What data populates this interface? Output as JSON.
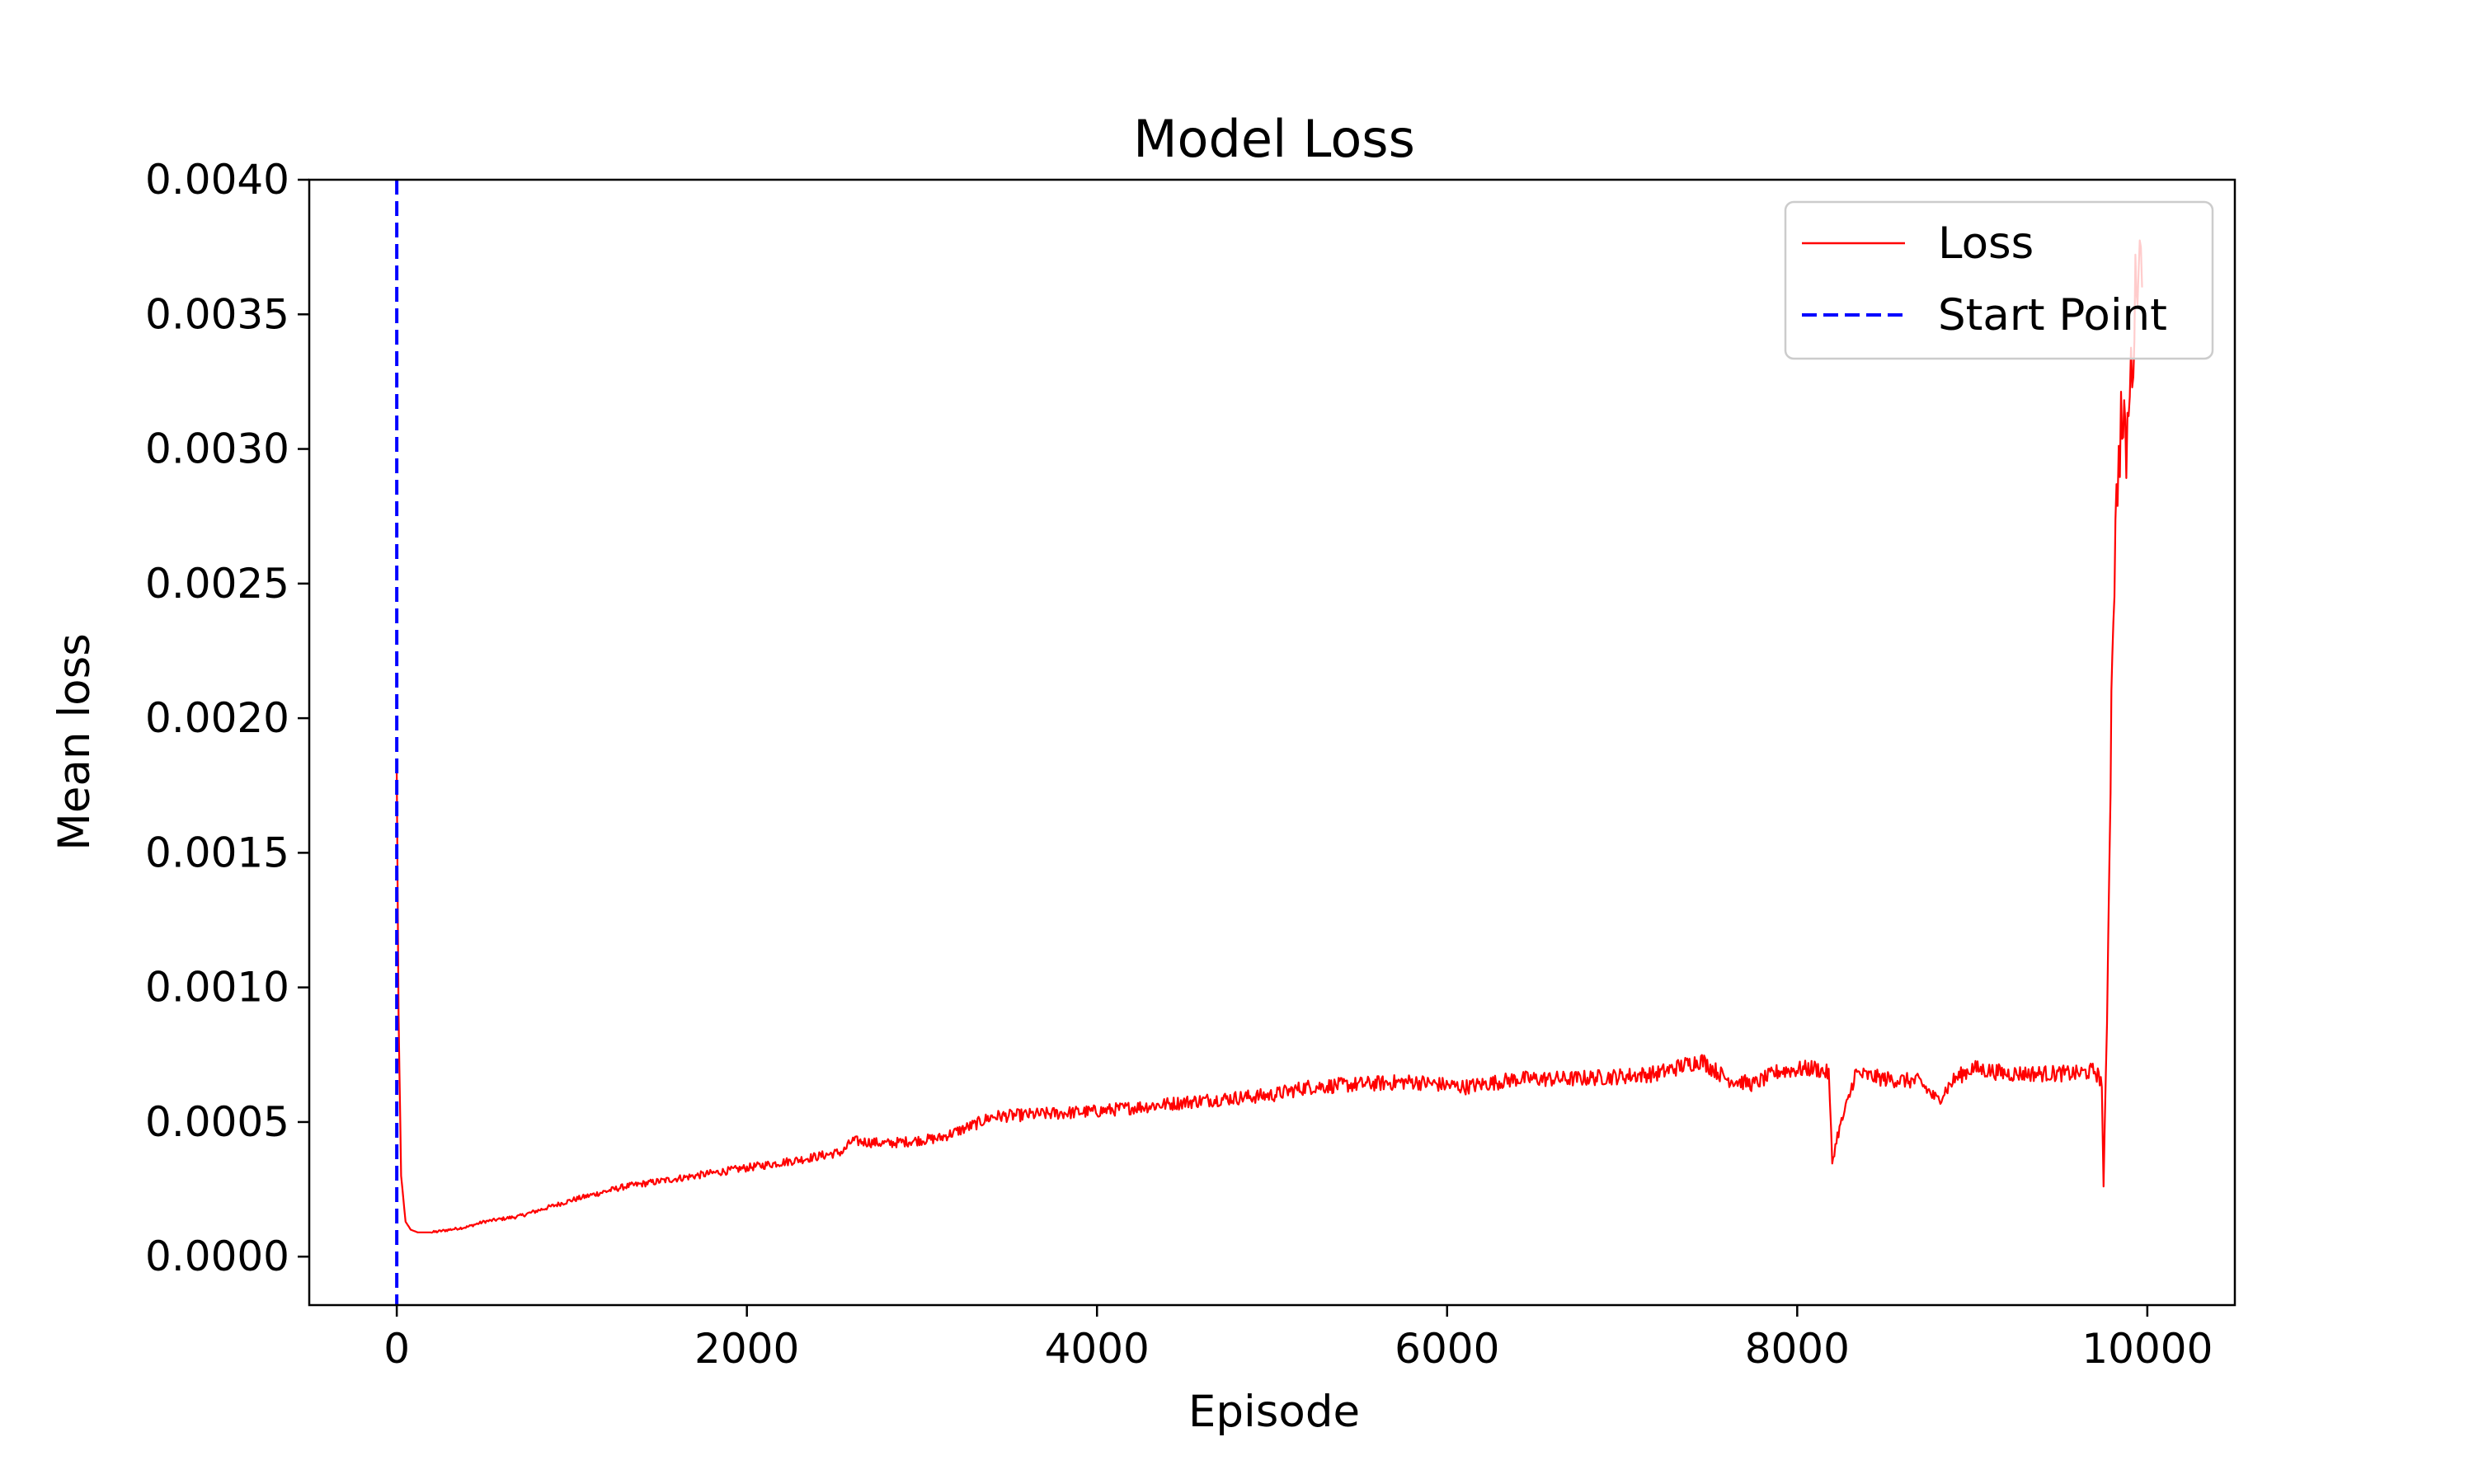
{
  "chart_data": {
    "type": "line",
    "title": "Model Loss",
    "xlabel": "Episode",
    "ylabel": "Mean loss",
    "xlim": [
      -500,
      10500
    ],
    "ylim": [
      -0.00018,
      0.004
    ],
    "xticks": [
      0,
      2000,
      4000,
      6000,
      8000,
      10000
    ],
    "xtick_labels": [
      "0",
      "2000",
      "4000",
      "6000",
      "8000",
      "10000"
    ],
    "yticks": [
      0.0,
      0.0005,
      0.001,
      0.0015,
      0.002,
      0.0025,
      0.003,
      0.0035,
      0.004
    ],
    "ytick_labels": [
      "0.0000",
      "0.0005",
      "0.0010",
      "0.0015",
      "0.0020",
      "0.0025",
      "0.0030",
      "0.0035",
      "0.0040"
    ],
    "grid": false,
    "legend_position": "top-right",
    "series": [
      {
        "name": "Loss",
        "color": "#ff0000",
        "style": "solid",
        "x": [
          0,
          10,
          25,
          50,
          80,
          120,
          200,
          300,
          400,
          500,
          700,
          1000,
          1300,
          1600,
          2000,
          2300,
          2550,
          2600,
          2800,
          3100,
          3300,
          3400,
          3700,
          4000,
          4300,
          4600,
          5000,
          5200,
          5500,
          5800,
          6100,
          6400,
          6700,
          7000,
          7200,
          7450,
          7600,
          7750,
          7900,
          8100,
          8180,
          8200,
          8230,
          8300,
          8330,
          8500,
          8700,
          8800,
          8900,
          9000,
          9200,
          9400,
          9600,
          9700,
          9740,
          9750,
          9770,
          9790,
          9800,
          9830,
          9850,
          9880,
          9900,
          9920,
          9950,
          9970
        ],
        "y": [
          0.0018,
          0.0009,
          0.0003,
          0.00013,
          0.0001,
          9e-05,
          9e-05,
          0.0001,
          0.00011,
          0.00013,
          0.00015,
          0.00021,
          0.00026,
          0.00029,
          0.00033,
          0.00036,
          0.00039,
          0.00043,
          0.00042,
          0.00044,
          0.00049,
          0.00052,
          0.00053,
          0.00054,
          0.00056,
          0.00058,
          0.0006,
          0.00063,
          0.00064,
          0.00065,
          0.00063,
          0.00066,
          0.00066,
          0.00067,
          0.00068,
          0.00073,
          0.00066,
          0.00064,
          0.00069,
          0.0007,
          0.00068,
          0.00035,
          0.00045,
          0.0006,
          0.00068,
          0.00066,
          0.00065,
          0.00058,
          0.00066,
          0.0007,
          0.00068,
          0.00068,
          0.00068,
          0.00069,
          0.00065,
          0.00025,
          0.0009,
          0.0018,
          0.0023,
          0.0029,
          0.0031,
          0.003,
          0.0032,
          0.0034,
          0.0038,
          0.0036
        ]
      },
      {
        "name": "Start Point",
        "color": "#0000ff",
        "style": "dashed",
        "vline_x": 0
      }
    ]
  }
}
